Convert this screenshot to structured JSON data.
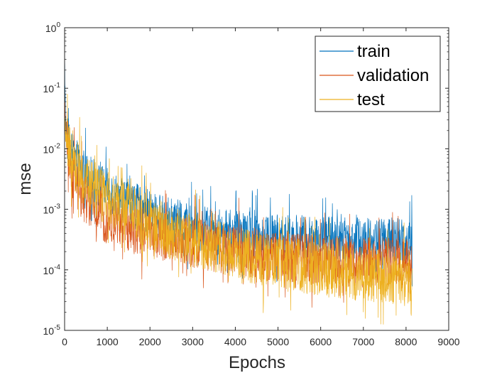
{
  "chart_data": {
    "type": "line",
    "title": "",
    "xlabel": "Epochs",
    "ylabel": "mse",
    "xlim": [
      0,
      9000
    ],
    "ylim": [
      1e-05,
      1
    ],
    "yscale": "log",
    "grid": false,
    "legend": "top-right",
    "x_ticks": [
      0,
      1000,
      2000,
      3000,
      4000,
      5000,
      6000,
      7000,
      8000,
      9000
    ],
    "x_tick_labels": [
      "0",
      "1000",
      "2000",
      "3000",
      "4000",
      "5000",
      "6000",
      "7000",
      "8000",
      "9000"
    ],
    "y_ticks": [
      1e-05,
      0.0001,
      0.001,
      0.01,
      0.1,
      1
    ],
    "y_tick_labels": [
      {
        "base": "10",
        "exp": "-5"
      },
      {
        "base": "10",
        "exp": "-4"
      },
      {
        "base": "10",
        "exp": "-3"
      },
      {
        "base": "10",
        "exp": "-2"
      },
      {
        "base": "10",
        "exp": "-1"
      },
      {
        "base": "10",
        "exp": "0"
      }
    ],
    "x_end": 8150,
    "series": [
      {
        "name": "train",
        "color": "#0072BD",
        "noise_decades": 0.38,
        "x": [
          0,
          20,
          50,
          100,
          200,
          400,
          600,
          800,
          1000,
          1500,
          2000,
          2500,
          3000,
          3500,
          4000,
          4500,
          5000,
          6000,
          7000,
          8000,
          8150
        ],
        "y": [
          0.3,
          0.03,
          0.018,
          0.011,
          0.007,
          0.0045,
          0.0032,
          0.0025,
          0.002,
          0.0013,
          0.00085,
          0.00065,
          0.00052,
          0.00044,
          0.0004,
          0.00037,
          0.00035,
          0.00033,
          0.00031,
          0.0003,
          0.0003
        ]
      },
      {
        "name": "validation",
        "color": "#D95319",
        "noise_decades": 0.42,
        "x": [
          0,
          20,
          50,
          100,
          200,
          400,
          600,
          800,
          1000,
          1500,
          2000,
          2500,
          3000,
          3500,
          4000,
          4500,
          5000,
          6000,
          7000,
          8000,
          8150
        ],
        "y": [
          0.08,
          0.02,
          0.012,
          0.0065,
          0.0035,
          0.0018,
          0.0012,
          0.0009,
          0.0007,
          0.0005,
          0.0004,
          0.00033,
          0.00028,
          0.00024,
          0.00021,
          0.00019,
          0.00017,
          0.00015,
          0.000135,
          0.000125,
          0.000125
        ]
      },
      {
        "name": "test",
        "color": "#EDB120",
        "noise_decades": 0.45,
        "x": [
          0,
          20,
          50,
          100,
          200,
          400,
          600,
          800,
          1000,
          1500,
          2000,
          2500,
          3000,
          3500,
          4000,
          4500,
          5000,
          6000,
          7000,
          8000,
          8150
        ],
        "y": [
          0.03,
          0.02,
          0.013,
          0.009,
          0.006,
          0.0035,
          0.0025,
          0.0019,
          0.0015,
          0.00095,
          0.0006,
          0.00042,
          0.00032,
          0.00025,
          0.0002,
          0.00016,
          0.00013,
          0.0001,
          8.5e-05,
          7e-05,
          7e-05
        ]
      }
    ]
  }
}
